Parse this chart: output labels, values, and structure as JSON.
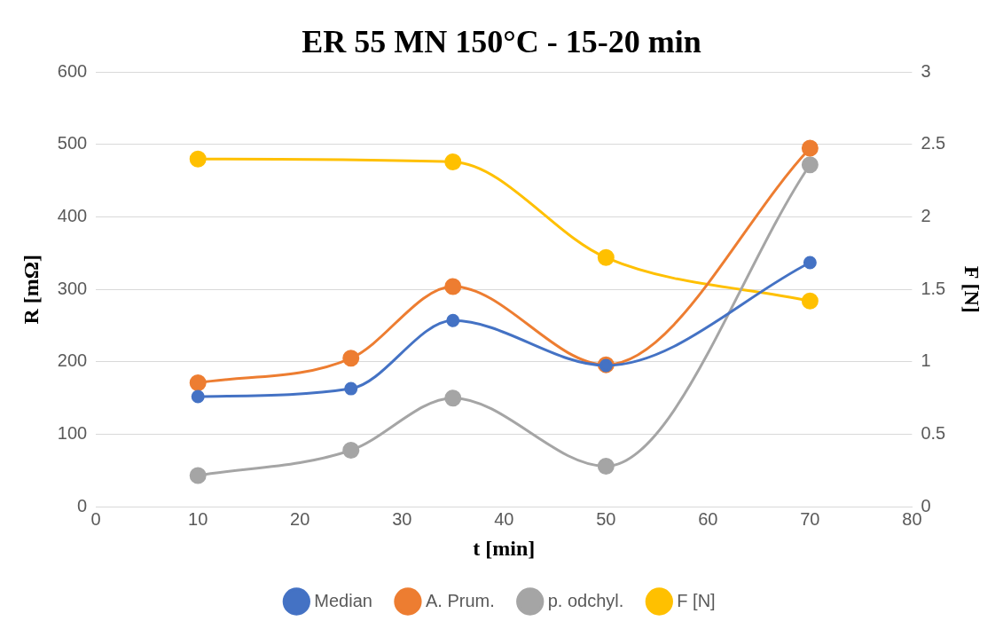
{
  "chart_data": {
    "type": "line",
    "title": "ER 55 MN 150°C - 15-20 min",
    "xlabel": "t [min]",
    "ylabel": "R [mΩ]",
    "y2label": "F [N]",
    "x": [
      10,
      25,
      35,
      50,
      70
    ],
    "series": [
      {
        "name": "Median",
        "color": "#4472c4",
        "values": [
          152,
          163,
          257,
          195,
          337
        ]
      },
      {
        "name": "A. Prum.",
        "color": "#ed7d31",
        "values": [
          171,
          205,
          304,
          196,
          495
        ]
      },
      {
        "name": "p. odchyl.",
        "color": "#a5a5a5",
        "values": [
          43,
          78,
          150,
          56,
          472
        ]
      },
      {
        "name": "F [N]",
        "color": "#ffc000",
        "axis": "y2",
        "x": [
          10,
          35,
          50,
          70
        ],
        "values": [
          2.4,
          2.38,
          1.72,
          1.42
        ]
      }
    ],
    "xlim": [
      0,
      80
    ],
    "xticks": [
      0,
      10,
      20,
      30,
      40,
      50,
      60,
      70,
      80
    ],
    "ylim": [
      0,
      600
    ],
    "yticks": [
      0,
      100,
      200,
      300,
      400,
      500,
      600
    ],
    "y2lim": [
      0,
      3
    ],
    "y2ticks": [
      0,
      0.5,
      1,
      1.5,
      2,
      2.5,
      3
    ],
    "grid": "y",
    "legend": "bottom",
    "marker": "circle",
    "line_style": "solid"
  }
}
